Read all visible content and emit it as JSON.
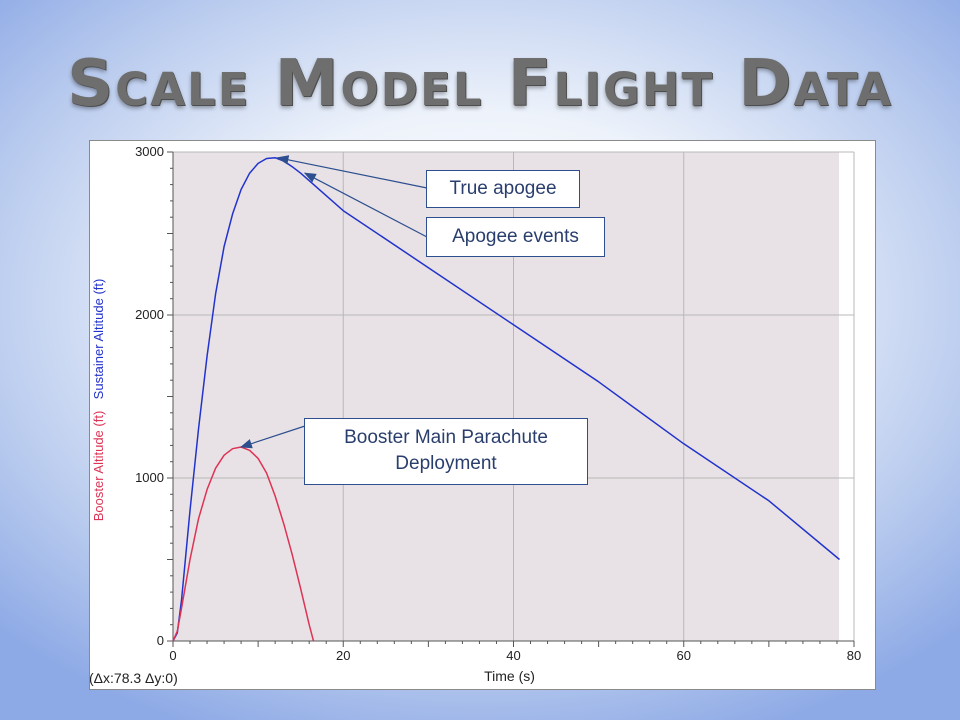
{
  "slide": {
    "title": "Scale Model Flight Data"
  },
  "chart_data": {
    "type": "line",
    "title": "",
    "xlabel": "Time (s)",
    "ylabel_booster": "Booster Altitude (ft)",
    "ylabel_sustainer": "Sustainer Altitude (ft)",
    "xlim": [
      0,
      80
    ],
    "ylim": [
      0,
      3000
    ],
    "xticks": [
      "0",
      "20",
      "40",
      "60",
      "80"
    ],
    "yticks": [
      "0",
      "1000",
      "2000",
      "3000"
    ],
    "grid": true,
    "readout": "(Δx:78.3  Δy:0)",
    "series": [
      {
        "name": "Sustainer Altitude (ft)",
        "color": "#2233cc",
        "x": [
          0,
          0.5,
          1,
          2,
          3,
          4,
          5,
          6,
          7,
          8,
          9,
          10,
          11,
          12,
          13,
          14,
          15,
          20,
          30,
          40,
          50,
          60,
          70,
          78.3
        ],
        "y": [
          0,
          50,
          250,
          800,
          1300,
          1750,
          2130,
          2420,
          2620,
          2770,
          2870,
          2930,
          2960,
          2965,
          2945,
          2910,
          2870,
          2640,
          2290,
          1940,
          1590,
          1210,
          860,
          500
        ]
      },
      {
        "name": "Booster Altitude (ft)",
        "color": "#dd3355",
        "x": [
          0,
          0.5,
          1,
          2,
          3,
          4,
          5,
          6,
          7,
          8,
          9,
          10,
          11,
          12,
          13,
          14,
          15,
          16,
          16.5
        ],
        "y": [
          0,
          60,
          200,
          500,
          750,
          930,
          1060,
          1140,
          1180,
          1190,
          1170,
          1120,
          1030,
          890,
          720,
          530,
          320,
          100,
          0
        ]
      }
    ],
    "annotations": [
      {
        "text": "True apogee",
        "x": 12.3,
        "y": 2965
      },
      {
        "text": "Apogee events",
        "x": 15.5,
        "y": 2870
      },
      {
        "text": "Booster Main Parachute Deployment",
        "x": 8,
        "y": 1190
      }
    ]
  }
}
